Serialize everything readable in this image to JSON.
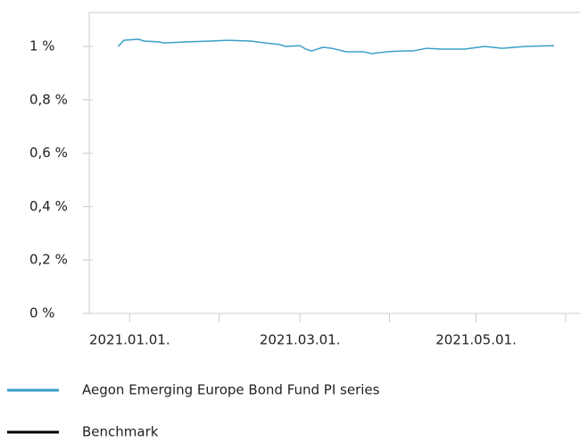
{
  "chart_data": {
    "type": "line",
    "x": [
      "2020-12-28",
      "2020-12-30",
      "2021-01-04",
      "2021-01-06",
      "2021-01-11",
      "2021-01-13",
      "2021-01-21",
      "2021-01-29",
      "2021-02-04",
      "2021-02-12",
      "2021-02-17",
      "2021-02-22",
      "2021-02-24",
      "2021-03-01",
      "2021-03-03",
      "2021-03-05",
      "2021-03-09",
      "2021-03-12",
      "2021-03-17",
      "2021-03-23",
      "2021-03-26",
      "2021-03-31",
      "2021-04-06",
      "2021-04-09",
      "2021-04-14",
      "2021-04-19",
      "2021-04-27",
      "2021-05-04",
      "2021-05-10",
      "2021-05-18",
      "2021-05-28"
    ],
    "series": [
      {
        "name": "Aegon Emerging Europe Bond Fund PI series",
        "color": "#3a9fc6",
        "values": [
          1.0,
          1.023,
          1.027,
          1.02,
          1.017,
          1.013,
          1.017,
          1.02,
          1.023,
          1.02,
          1.013,
          1.007,
          1.0,
          1.003,
          0.99,
          0.983,
          0.997,
          0.993,
          0.98,
          0.98,
          0.973,
          0.98,
          0.983,
          0.983,
          0.993,
          0.99,
          0.99,
          1.0,
          0.993,
          1.0,
          1.003
        ]
      },
      {
        "name": "Benchmark",
        "color": "#000000",
        "values": [
          null,
          null,
          null,
          null,
          null,
          null,
          null,
          null,
          null,
          null,
          null,
          null,
          null,
          null,
          null,
          null,
          null,
          null,
          null,
          null,
          null,
          null,
          null,
          null,
          null,
          null,
          null,
          null,
          null,
          null,
          null
        ]
      }
    ],
    "ylim": [
      0,
      1.127
    ],
    "yticks": [
      {
        "value": 0,
        "label": "0  %"
      },
      {
        "value": 0.2,
        "label": "0,2  %"
      },
      {
        "value": 0.4,
        "label": "0,4  %"
      },
      {
        "value": 0.6,
        "label": "0,6  %"
      },
      {
        "value": 0.8,
        "label": "0,8  %"
      },
      {
        "value": 1,
        "label": "1  %"
      }
    ],
    "xlim": [
      "2020-12-18",
      "2021-06-06"
    ],
    "xticks": [
      {
        "value": "2021-01-01",
        "label": "2021.01.01."
      },
      {
        "value": "2021-03-01",
        "label": "2021.03.01."
      },
      {
        "value": "2021-05-01",
        "label": "2021.05.01."
      }
    ],
    "xticks_minor": [
      "2021-02-01",
      "2021-04-01",
      "2021-06-01"
    ],
    "grid": false
  }
}
